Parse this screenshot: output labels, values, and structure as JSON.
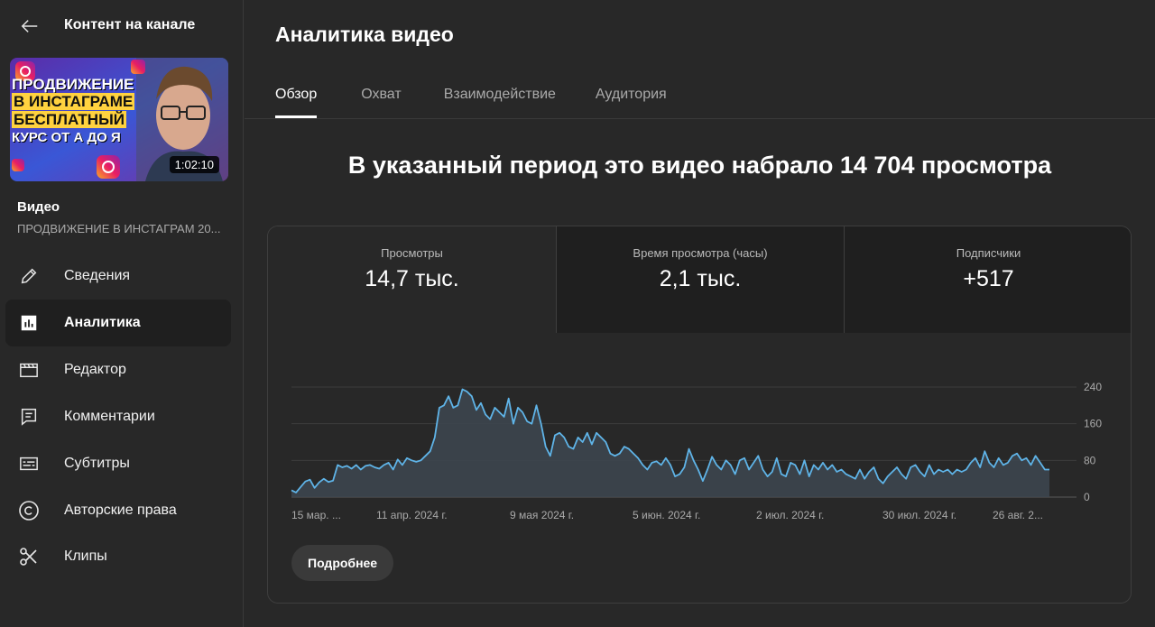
{
  "sidebar": {
    "title": "Контент на канале",
    "video_label": "Видео",
    "video_name": "ПРОДВИЖЕНИЕ В ИНСТАГРАМ 20...",
    "thumbnail": {
      "lines": [
        "ПРОДВИЖЕНИЕ",
        "В ИНСТАГРАМЕ",
        "БЕСПЛАТНЫЙ",
        "КУРС ОТ А ДО Я"
      ],
      "duration": "1:02:10"
    },
    "items": [
      {
        "label": "Сведения",
        "icon": "pencil-icon"
      },
      {
        "label": "Аналитика",
        "icon": "analytics-icon",
        "active": true
      },
      {
        "label": "Редактор",
        "icon": "clapperboard-icon"
      },
      {
        "label": "Комментарии",
        "icon": "comment-icon"
      },
      {
        "label": "Субтитры",
        "icon": "subtitles-icon"
      },
      {
        "label": "Авторские права",
        "icon": "copyright-icon"
      },
      {
        "label": "Клипы",
        "icon": "scissors-icon"
      }
    ]
  },
  "main": {
    "title": "Аналитика видео",
    "tabs": [
      "Обзор",
      "Охват",
      "Взаимодействие",
      "Аудитория"
    ],
    "headline": "В указанный период это видео набрало 14 704 просмотра",
    "metrics": [
      {
        "label": "Просмотры",
        "value": "14,7 тыс."
      },
      {
        "label": "Время просмотра (часы)",
        "value": "2,1 тыс."
      },
      {
        "label": "Подписчики",
        "value": "+517"
      }
    ],
    "more_button": "Подробнее"
  },
  "colors": {
    "accent_line": "#5fb4e8",
    "background": "#282828"
  },
  "chart_data": {
    "type": "area",
    "y_ticks": [
      "240",
      "160",
      "80",
      "0"
    ],
    "ylim": [
      0,
      240
    ],
    "x_ticks": [
      "15 мар. ...",
      "11 апр. 2024 г.",
      "9 мая 2024 г.",
      "5 июн. 2024 г.",
      "2 июл. 2024 г.",
      "30 июл. 2024 г.",
      "26 авг. 2..."
    ],
    "series": [
      {
        "values": [
          15,
          10,
          22,
          34,
          38,
          20,
          32,
          40,
          33,
          36,
          70,
          65,
          68,
          62,
          70,
          60,
          68,
          70,
          65,
          62,
          70,
          75,
          60,
          82,
          70,
          85,
          80,
          77,
          80,
          90,
          100,
          130,
          195,
          200,
          220,
          195,
          200,
          235,
          230,
          220,
          190,
          205,
          180,
          170,
          195,
          185,
          175,
          215,
          160,
          195,
          185,
          165,
          160,
          200,
          160,
          110,
          90,
          135,
          140,
          130,
          110,
          105,
          130,
          120,
          140,
          115,
          140,
          130,
          120,
          95,
          90,
          95,
          110,
          105,
          95,
          85,
          70,
          60,
          75,
          78,
          70,
          85,
          70,
          45,
          50,
          65,
          105,
          80,
          60,
          35,
          60,
          88,
          70,
          60,
          80,
          70,
          50,
          80,
          85,
          60,
          75,
          90,
          60,
          45,
          55,
          85,
          50,
          45,
          75,
          70,
          50,
          80,
          45,
          70,
          60,
          75,
          60,
          70,
          55,
          60,
          50,
          45,
          40,
          60,
          40,
          55,
          65,
          40,
          30,
          45,
          55,
          65,
          50,
          40,
          65,
          70,
          55,
          45,
          70,
          50,
          60,
          55,
          60,
          50,
          60,
          55,
          60,
          75,
          85,
          65,
          100,
          75,
          65,
          85,
          70,
          75,
          90,
          95,
          80,
          85,
          70,
          90,
          75,
          60,
          60
        ]
      }
    ]
  }
}
